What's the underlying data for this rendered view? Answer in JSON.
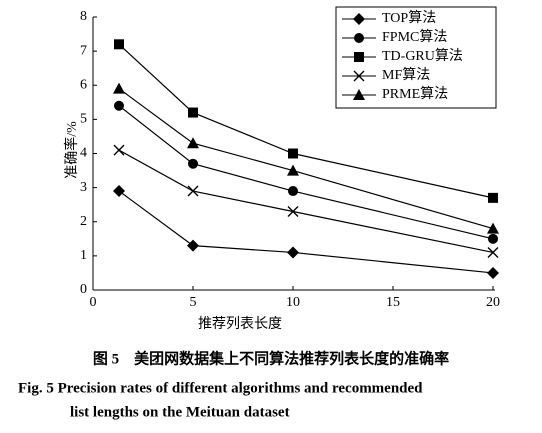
{
  "chart_data": {
    "type": "line",
    "x_label": "推荐列表长度",
    "y_label": "准确率/%",
    "x": [
      1.3,
      5,
      10,
      20
    ],
    "series": [
      {
        "name": "TOP算法",
        "color": "#000000",
        "marker": "diamond",
        "values": [
          2.9,
          1.3,
          1.1,
          0.5
        ]
      },
      {
        "name": "FPMC算法",
        "color": "#000000",
        "marker": "circle",
        "values": [
          5.4,
          3.7,
          2.9,
          1.5
        ]
      },
      {
        "name": "TD-GRU算法",
        "color": "#000000",
        "marker": "square",
        "values": [
          7.2,
          5.2,
          4.0,
          2.7
        ]
      },
      {
        "name": "MF算法",
        "color": "#000000",
        "marker": "x",
        "values": [
          4.1,
          2.9,
          2.3,
          1.1
        ]
      },
      {
        "name": "PRME算法",
        "color": "#000000",
        "marker": "triangle",
        "values": [
          5.9,
          4.3,
          3.5,
          1.8
        ]
      }
    ],
    "xlim": [
      0,
      21
    ],
    "xticks": [
      0,
      5,
      10,
      15,
      20
    ],
    "ylim": [
      0,
      8
    ],
    "yticks": [
      0,
      1,
      2,
      3,
      4,
      5,
      6,
      7,
      8
    ],
    "legend": "upper right",
    "caption": [
      "图 5　美团网数据集上不同算法推荐列表长度的准确率",
      "Fig. 5  Precision rates of different algorithms and recommended",
      "list lengths on the Meituan dataset"
    ]
  }
}
